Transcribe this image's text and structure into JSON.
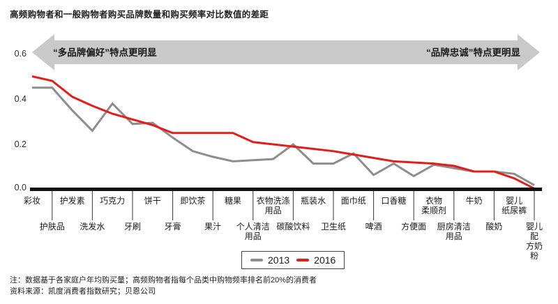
{
  "title": "高频购物者和一般购物者购买品牌数量和购买频率对比数值的差距",
  "banner": {
    "left_label": "“多品牌偏好”特点更明显",
    "right_label": "“品牌忠诚”特点更明显",
    "color": "#c9c9c9"
  },
  "legend": {
    "items": [
      {
        "label": "2013",
        "color": "#8d8d8d"
      },
      {
        "label": "2016",
        "color": "#e01f1a"
      }
    ]
  },
  "notes": {
    "line1": "注：数据基于各家庭户年均购买量；高频购物者指每个品类中购物频率排名前20%的消费者",
    "line2": "资料来源：凯度消费者指数研究；贝恩公司"
  },
  "x_axis": {
    "labels": [
      {
        "lines": [
          "彩妆"
        ],
        "row": "top"
      },
      {
        "lines": [
          "护肤品"
        ],
        "row": "bottom"
      },
      {
        "lines": [
          "护发素"
        ],
        "row": "top"
      },
      {
        "lines": [
          "洗发水"
        ],
        "row": "bottom"
      },
      {
        "lines": [
          "巧克力"
        ],
        "row": "top"
      },
      {
        "lines": [
          "牙刷"
        ],
        "row": "bottom"
      },
      {
        "lines": [
          "饼干"
        ],
        "row": "top"
      },
      {
        "lines": [
          "牙膏"
        ],
        "row": "bottom"
      },
      {
        "lines": [
          "即饮茶"
        ],
        "row": "top"
      },
      {
        "lines": [
          "果汁"
        ],
        "row": "bottom"
      },
      {
        "lines": [
          "糖果"
        ],
        "row": "top"
      },
      {
        "lines": [
          "个人清洁",
          "用品"
        ],
        "row": "bottom"
      },
      {
        "lines": [
          "衣物洗涤",
          "用品"
        ],
        "row": "top"
      },
      {
        "lines": [
          "碳酸饮料"
        ],
        "row": "bottom"
      },
      {
        "lines": [
          "瓶装水"
        ],
        "row": "top"
      },
      {
        "lines": [
          "卫生纸"
        ],
        "row": "bottom"
      },
      {
        "lines": [
          "面巾纸"
        ],
        "row": "top"
      },
      {
        "lines": [
          "啤酒"
        ],
        "row": "bottom"
      },
      {
        "lines": [
          "口香糖"
        ],
        "row": "top"
      },
      {
        "lines": [
          "方便面"
        ],
        "row": "bottom"
      },
      {
        "lines": [
          "衣物",
          "柔顺剂"
        ],
        "row": "top"
      },
      {
        "lines": [
          "厨房清洁",
          "用品"
        ],
        "row": "bottom"
      },
      {
        "lines": [
          "牛奶"
        ],
        "row": "top"
      },
      {
        "lines": [
          "酸奶"
        ],
        "row": "bottom"
      },
      {
        "lines": [
          "婴儿",
          "纸尿裤"
        ],
        "row": "top"
      },
      {
        "lines": [
          "婴儿配",
          "方奶粉"
        ],
        "row": "bottom"
      }
    ]
  },
  "chart_data": {
    "type": "line",
    "title": "高频购物者和一般购物者购买品牌数量和购买频率对比数值的差距",
    "categories": [
      "彩妆",
      "护肤品",
      "护发素",
      "洗发水",
      "巧克力",
      "牙刷",
      "饼干",
      "牙膏",
      "即饮茶",
      "果汁",
      "糖果",
      "个人清洁用品",
      "衣物洗涤用品",
      "碳酸饮料",
      "瓶装水",
      "卫生纸",
      "面巾纸",
      "啤酒",
      "口香糖",
      "方便面",
      "衣物柔顺剂",
      "厨房清洁用品",
      "牛奶",
      "酸奶",
      "婴儿纸尿裤",
      "婴儿配方奶粉"
    ],
    "series": [
      {
        "name": "2013",
        "color": "#8d8d8d",
        "values": [
          0.45,
          0.45,
          0.35,
          0.26,
          0.38,
          0.29,
          0.295,
          0.23,
          0.17,
          0.145,
          0.125,
          0.13,
          0.135,
          0.2,
          0.115,
          0.115,
          0.16,
          0.065,
          0.115,
          0.06,
          0.11,
          0.095,
          0.08,
          0.08,
          0.07,
          0.02
        ]
      },
      {
        "name": "2016",
        "color": "#e01f1a",
        "values": [
          0.5,
          0.48,
          0.41,
          0.37,
          0.335,
          0.31,
          0.285,
          0.25,
          0.25,
          0.25,
          0.25,
          0.21,
          0.2,
          0.19,
          0.18,
          0.17,
          0.155,
          0.14,
          0.125,
          0.12,
          0.115,
          0.105,
          0.08,
          0.08,
          0.05,
          0.005
        ]
      }
    ],
    "ylim": [
      0,
      0.6
    ],
    "yticks": [
      0,
      0.2,
      0.4,
      0.6
    ],
    "grid": false,
    "legend_position": "bottom"
  }
}
